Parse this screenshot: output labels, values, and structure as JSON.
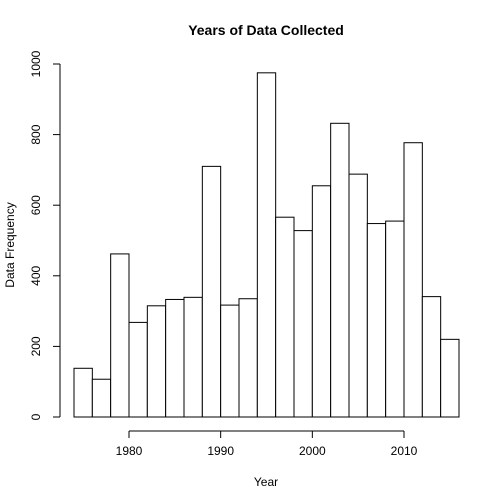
{
  "chart_data": {
    "type": "bar",
    "title": "Years of Data Collected",
    "xlabel": "Year",
    "ylabel": "Data Frequency",
    "bins": [
      {
        "start": 1974,
        "end": 1976,
        "value": 138
      },
      {
        "start": 1976,
        "end": 1978,
        "value": 107
      },
      {
        "start": 1978,
        "end": 1980,
        "value": 462
      },
      {
        "start": 1980,
        "end": 1982,
        "value": 268
      },
      {
        "start": 1982,
        "end": 1984,
        "value": 315
      },
      {
        "start": 1984,
        "end": 1986,
        "value": 333
      },
      {
        "start": 1986,
        "end": 1988,
        "value": 339
      },
      {
        "start": 1988,
        "end": 1990,
        "value": 710
      },
      {
        "start": 1990,
        "end": 1992,
        "value": 317
      },
      {
        "start": 1992,
        "end": 1994,
        "value": 335
      },
      {
        "start": 1994,
        "end": 1996,
        "value": 975
      },
      {
        "start": 1996,
        "end": 1998,
        "value": 566
      },
      {
        "start": 1998,
        "end": 2000,
        "value": 528
      },
      {
        "start": 2000,
        "end": 2002,
        "value": 655
      },
      {
        "start": 2002,
        "end": 2004,
        "value": 832
      },
      {
        "start": 2004,
        "end": 2006,
        "value": 688
      },
      {
        "start": 2006,
        "end": 2008,
        "value": 548
      },
      {
        "start": 2008,
        "end": 2010,
        "value": 555
      },
      {
        "start": 2010,
        "end": 2012,
        "value": 777
      },
      {
        "start": 2012,
        "end": 2014,
        "value": 341
      },
      {
        "start": 2014,
        "end": 2016,
        "value": 220
      }
    ],
    "xlim": [
      1974,
      2016
    ],
    "ylim": [
      0,
      1000
    ],
    "xticks": [
      1980,
      1990,
      2000,
      2010
    ],
    "yticks": [
      0,
      200,
      400,
      600,
      800,
      1000
    ],
    "grid": false
  }
}
